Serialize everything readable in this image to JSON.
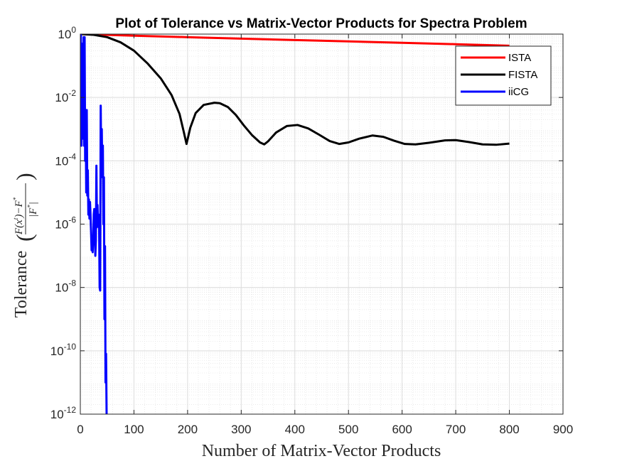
{
  "chart_data": {
    "type": "line",
    "title": "Plot of Tolerance vs Matrix-Vector Products for Spectra Problem",
    "xlabel": "Number of Matrix-Vector Products",
    "ylabel_prefix": "Tolerance",
    "ylabel_formula_parts": {
      "left_paren": "(",
      "num_F": "F",
      "num_x": "(x",
      "num_t": "t",
      "num_close_minus": ")−F",
      "num_star": "*",
      "den_F": "|F",
      "den_star": "*",
      "den_bar": "|",
      "right_paren": ")"
    },
    "x_scale": "linear",
    "y_scale": "log",
    "xlim": [
      0,
      900
    ],
    "ylim": [
      1e-12,
      1
    ],
    "x_ticks": [
      0,
      100,
      200,
      300,
      400,
      500,
      600,
      700,
      800,
      900
    ],
    "x_tick_labels": [
      "0",
      "100",
      "200",
      "300",
      "400",
      "500",
      "600",
      "700",
      "800",
      "900"
    ],
    "y_tick_exponents": [
      -12,
      -10,
      -8,
      -6,
      -4,
      -2,
      0
    ],
    "y_tick_labels": [
      {
        "base": "10",
        "exp": "-12"
      },
      {
        "base": "10",
        "exp": "-10"
      },
      {
        "base": "10",
        "exp": "-8"
      },
      {
        "base": "10",
        "exp": "-6"
      },
      {
        "base": "10",
        "exp": "-4"
      },
      {
        "base": "10",
        "exp": "-2"
      },
      {
        "base": "10",
        "exp": "0"
      }
    ],
    "grid": true,
    "minor_grid": true,
    "legend_position": "top-right",
    "series": [
      {
        "name": "ISTA",
        "color": "#ff0000",
        "x": [
          1,
          100,
          200,
          300,
          400,
          500,
          600,
          700,
          800
        ],
        "y": [
          1.0,
          0.89,
          0.8,
          0.72,
          0.65,
          0.59,
          0.53,
          0.48,
          0.43
        ]
      },
      {
        "name": "FISTA",
        "color": "#000000",
        "x": [
          1,
          25,
          50,
          75,
          100,
          125,
          150,
          170,
          185,
          193,
          198,
          205,
          215,
          230,
          250,
          260,
          275,
          290,
          305,
          320,
          335,
          343,
          350,
          365,
          385,
          405,
          425,
          445,
          465,
          483,
          500,
          520,
          545,
          565,
          585,
          605,
          625,
          650,
          680,
          700,
          725,
          750,
          775,
          800
        ],
        "y": [
          1.0,
          0.95,
          0.8,
          0.55,
          0.3,
          0.12,
          0.04,
          0.012,
          0.003,
          0.0008,
          0.00034,
          0.0011,
          0.0032,
          0.0058,
          0.0068,
          0.0066,
          0.005,
          0.0028,
          0.0013,
          0.00065,
          0.00038,
          0.00033,
          0.00041,
          0.00078,
          0.00125,
          0.00135,
          0.00105,
          0.00067,
          0.00042,
          0.00034,
          0.00038,
          0.0005,
          0.00063,
          0.00057,
          0.00043,
          0.00034,
          0.00033,
          0.00037,
          0.00044,
          0.00045,
          0.00039,
          0.00033,
          0.00032,
          0.00035
        ]
      },
      {
        "name": "iiCG",
        "color": "#0000ff",
        "x": [
          1,
          2,
          3,
          4,
          5,
          6,
          7,
          8,
          9,
          10,
          11,
          12,
          13,
          14,
          15,
          16,
          17,
          18,
          19,
          20,
          21,
          22,
          23,
          24,
          25,
          26,
          27,
          28,
          29,
          30,
          31,
          32,
          33,
          34,
          35,
          36,
          37,
          38,
          39,
          40,
          41,
          42,
          43,
          44,
          45,
          46,
          47,
          48,
          49,
          50
        ],
        "y": [
          1.0,
          0.0003,
          0.5,
          0.002,
          0.0005,
          0.8,
          0.0003,
          0.8,
          0.0001,
          0.003,
          1e-05,
          0.004,
          8e-06,
          5e-05,
          2e-06,
          6e-06,
          1.5e-06,
          5e-06,
          2e-06,
          6e-07,
          1.5e-07,
          4e-07,
          1.3e-07,
          3e-07,
          2e-06,
          3e-06,
          8e-07,
          1e-07,
          3e-07,
          7e-05,
          8e-07,
          4e-06,
          1.2e-06,
          2e-06,
          1e-06,
          1e-08,
          8e-09,
          0.0055,
          5e-05,
          0.001,
          3e-05,
          0.0003,
          1e-06,
          3e-05,
          1e-09,
          2e-07,
          1e-11,
          8e-11,
          1e-12,
          1e-12
        ]
      }
    ]
  }
}
